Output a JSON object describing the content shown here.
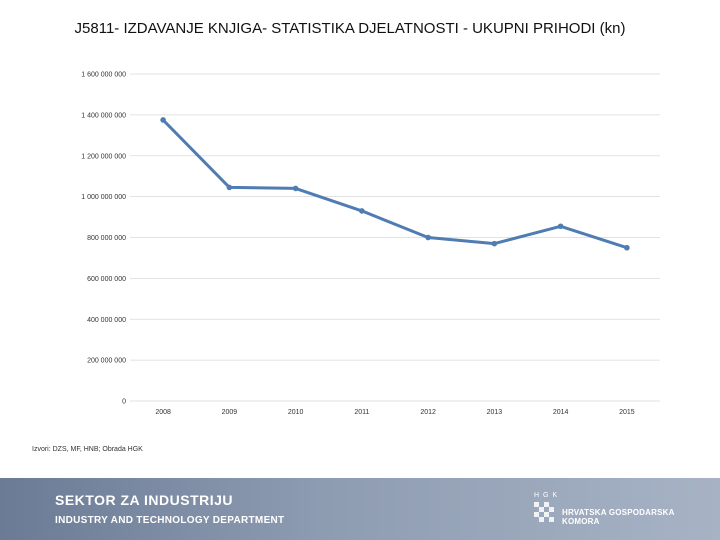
{
  "chart_data": {
    "type": "line",
    "title": "J5811- IZDAVANJE KNJIGA- STATISTIKA DJELATNOSTI - UKUPNI PRIHODI (kn)",
    "xlabel": "",
    "ylabel": "",
    "x": [
      "2008",
      "2009",
      "2010",
      "2011",
      "2012",
      "2013",
      "2014",
      "2015"
    ],
    "series": [
      {
        "values": [
          1375000000,
          1045000000,
          1040000000,
          930000000,
          800000000,
          770000000,
          855000000,
          750000000
        ]
      }
    ],
    "ylim": [
      0,
      1600000000
    ],
    "yticks": [
      {
        "value": 1600000000,
        "label": "1 600 000 000"
      },
      {
        "value": 1400000000,
        "label": "1 400 000 000"
      },
      {
        "value": 1200000000,
        "label": "1 200 000 000"
      },
      {
        "value": 1000000000,
        "label": "1 000 000 000"
      },
      {
        "value": 800000000,
        "label": "800 000 000"
      },
      {
        "value": 600000000,
        "label": "600 000 000"
      },
      {
        "value": 400000000,
        "label": "400 000 000"
      },
      {
        "value": 200000000,
        "label": "200 000 000"
      },
      {
        "value": 0,
        "label": "0"
      }
    ],
    "grid": true,
    "legend": "none",
    "line_color": "#4f7cb3"
  },
  "source_note": "Izvori: DZS, MF, HNB; Obrada HGK",
  "footer": {
    "line1": "SEKTOR ZA INDUSTRIJU",
    "line2": "INDUSTRY AND TECHNOLOGY DEPARTMENT",
    "logo_letters": "HGK",
    "logo_text": "HRVATSKA GOSPODARSKA KOMORA",
    "logo_icon": "checkerboard-emblem-icon"
  }
}
